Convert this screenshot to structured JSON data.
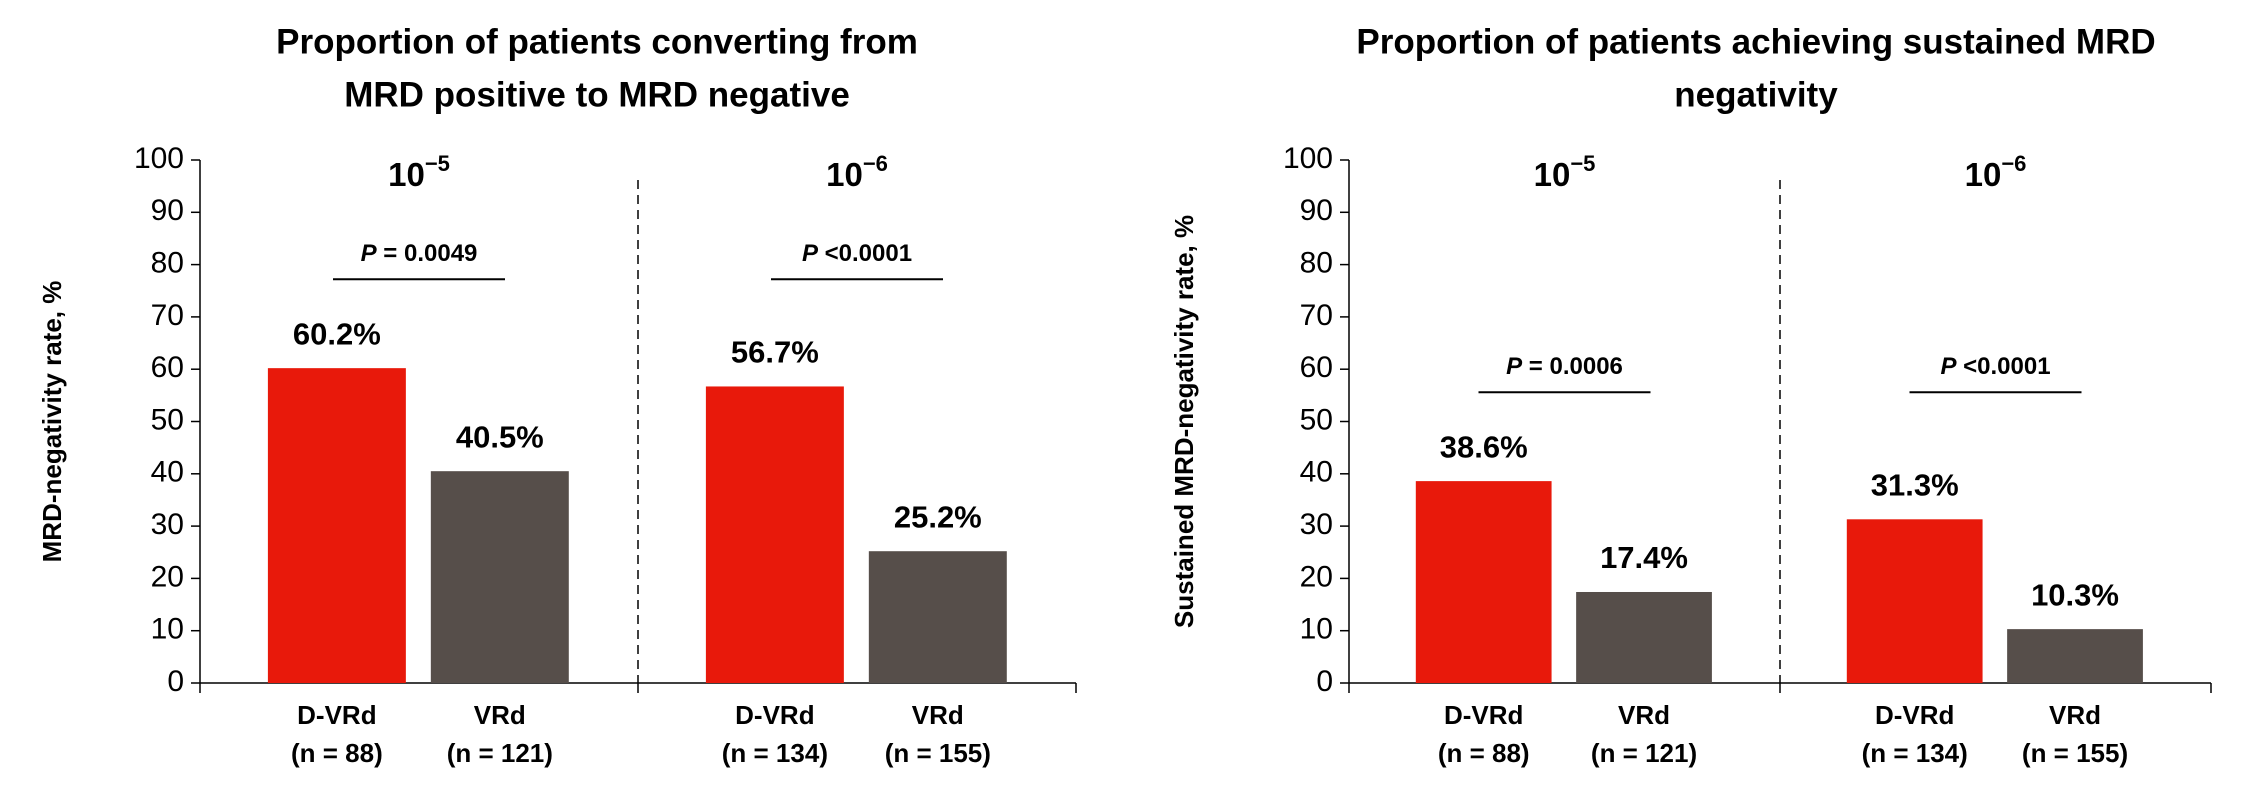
{
  "chart_data": [
    {
      "type": "bar",
      "title": [
        "Proportion  of patients converting from",
        "MRD positive to MRD negative"
      ],
      "y_label": "MRD-negativity rate, %",
      "ylim": [
        0,
        100
      ],
      "yticks": [
        0,
        10,
        20,
        30,
        40,
        50,
        60,
        70,
        80,
        90,
        100
      ],
      "categories": [
        [
          "D-VRd",
          "(n = 88)"
        ],
        [
          "VRd",
          "(n = 121)"
        ],
        [
          "D-VRd",
          "(n = 134)"
        ],
        [
          "VRd",
          "(n = 155)"
        ]
      ],
      "values": [
        60.2,
        40.5,
        56.7,
        25.2
      ],
      "value_labels": [
        "60.2%",
        "40.5%",
        "56.7%",
        "25.2%"
      ],
      "colors": [
        "#e8190b",
        "#564e4a",
        "#e8190b",
        "#564e4a"
      ],
      "groups": [
        {
          "base": "10",
          "exponent": "−5",
          "p_symbol": "P",
          "p_text": " = 0.0049"
        },
        {
          "base": "10",
          "exponent": "−6",
          "p_symbol": "P",
          "p_text": " <0.0001"
        }
      ]
    },
    {
      "type": "bar",
      "title": [
        "Proportion  of patients achieving sustained MRD",
        "negativity"
      ],
      "y_label": "Sustained MRD-negativity rate, %",
      "ylim": [
        0,
        100
      ],
      "yticks": [
        0,
        10,
        20,
        30,
        40,
        50,
        60,
        70,
        80,
        90,
        100
      ],
      "categories": [
        [
          "D-VRd",
          "(n = 88)"
        ],
        [
          "VRd",
          "(n = 121)"
        ],
        [
          "D-VRd",
          "(n = 134)"
        ],
        [
          "VRd",
          "(n = 155)"
        ]
      ],
      "values": [
        38.6,
        17.4,
        31.3,
        10.3
      ],
      "value_labels": [
        "38.6%",
        "17.4%",
        "31.3%",
        "10.3%"
      ],
      "colors": [
        "#e8190b",
        "#564e4a",
        "#e8190b",
        "#564e4a"
      ],
      "groups": [
        {
          "base": "10",
          "exponent": "−5",
          "p_symbol": "P",
          "p_text": " = 0.0006"
        },
        {
          "base": "10",
          "exponent": "−6",
          "p_symbol": "P",
          "p_text": " <0.0001"
        }
      ]
    }
  ]
}
